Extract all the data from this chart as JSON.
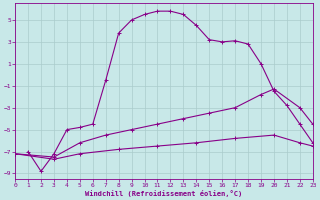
{
  "bg_color": "#c8e8e8",
  "line_color": "#880088",
  "grid_color": "#aacccc",
  "xlabel": "Windchill (Refroidissement éolien,°C)",
  "xlim": [
    0,
    23
  ],
  "ylim": [
    -9.5,
    6.5
  ],
  "xticks": [
    0,
    1,
    2,
    3,
    4,
    5,
    6,
    7,
    8,
    9,
    10,
    11,
    12,
    13,
    14,
    15,
    16,
    17,
    18,
    19,
    20,
    21,
    22,
    23
  ],
  "yticks": [
    -9,
    -7,
    -5,
    -3,
    -1,
    1,
    3,
    5
  ],
  "curve1_x": [
    1,
    2,
    3,
    4,
    5,
    6,
    7,
    8,
    9,
    10,
    11,
    12,
    13,
    14,
    15,
    16,
    17,
    18,
    19,
    20,
    21,
    22,
    23
  ],
  "curve1_y": [
    -7.0,
    -8.8,
    -7.2,
    -5.0,
    -4.8,
    -4.5,
    -0.5,
    3.8,
    5.0,
    5.5,
    5.8,
    5.8,
    5.5,
    4.5,
    3.2,
    3.0,
    3.1,
    2.8,
    1.0,
    -1.5,
    -2.8,
    -4.5,
    -6.2
  ],
  "curve2_x": [
    0,
    3,
    5,
    7,
    9,
    11,
    13,
    15,
    17,
    19,
    20,
    22,
    23
  ],
  "curve2_y": [
    -7.2,
    -7.5,
    -6.2,
    -5.5,
    -5.0,
    -4.5,
    -4.0,
    -3.5,
    -3.0,
    -1.8,
    -1.3,
    -3.0,
    -4.5
  ],
  "curve3_x": [
    0,
    3,
    5,
    8,
    11,
    14,
    17,
    20,
    22,
    23
  ],
  "curve3_y": [
    -7.2,
    -7.7,
    -7.2,
    -6.8,
    -6.5,
    -6.2,
    -5.8,
    -5.5,
    -6.2,
    -6.5
  ]
}
